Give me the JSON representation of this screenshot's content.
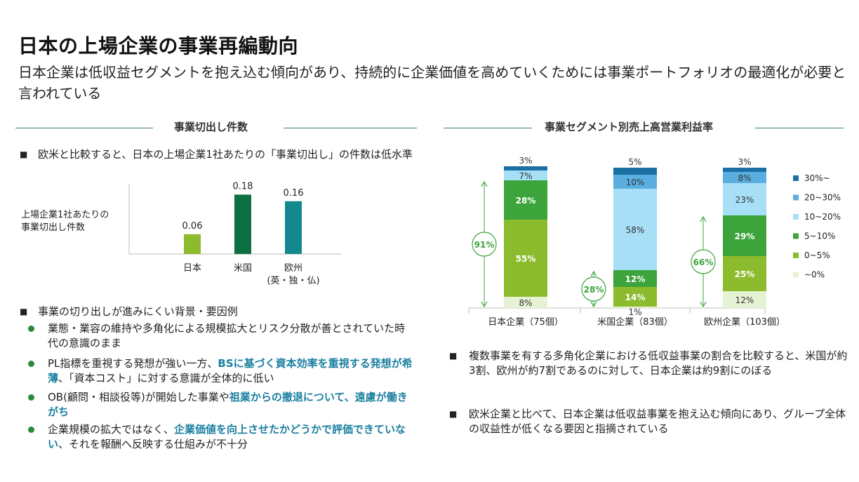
{
  "header": {
    "title": "日本の上場企業の事業再編動向",
    "subtitle": "日本企業は低収益セグメントを抱え込む傾向があり、持続的に企業価値を高めていくためには事業ポートフォリオの最適化が必要と言われている"
  },
  "left": {
    "section_title": "事業切出し件数",
    "bullet1": "欧米と比較すると、日本の上場企業1社あたりの「事業切出し」の件数は低水準",
    "bullet2": "事業の切り出しが進みにくい背景・要因例",
    "sub_items": [
      {
        "parts": [
          {
            "t": "業態・業容の維持や多角化による規模拡大とリスク分散が善とされていた時代の意識のまま",
            "h": false
          }
        ]
      },
      {
        "parts": [
          {
            "t": "PL指標を重視する発想が強い一方、",
            "h": false
          },
          {
            "t": "BSに基づく資本効率を重視する発想が希薄",
            "h": true
          },
          {
            "t": "、「資本コスト」に対する意識が全体的に低い",
            "h": false
          }
        ]
      },
      {
        "parts": [
          {
            "t": "OB(顧問・相談役等)が開始した事業や",
            "h": false
          },
          {
            "t": "祖業からの撤退について、遠慮が働きがち",
            "h": true
          }
        ]
      },
      {
        "parts": [
          {
            "t": "企業規模の拡大ではなく、",
            "h": false
          },
          {
            "t": "企業価値を向上させたかどうかで評価できていない",
            "h": true
          },
          {
            "t": "、それを報酬へ反映する仕組みが不十分",
            "h": false
          }
        ]
      }
    ]
  },
  "right": {
    "section_title": "事業セグメント別売上高営業利益率",
    "bullets": [
      "複数事業を有する多角化企業における低収益事業の割合を比較すると、米国が約3割、欧州が約7割であるのに対して、日本企業は約9割にのぼる",
      "欧米企業と比べて、日本企業は低収益事業を抱え込む傾向にあり、グループ全体の収益性が低くなる要因と指摘されている"
    ]
  },
  "chart_data": [
    {
      "type": "bar",
      "title": "",
      "ylabel": "上場企業1社あたりの事業切出し件数",
      "categories": [
        "日本",
        "米国",
        "欧州\n(英・独・仏)"
      ],
      "values": [
        0.06,
        0.18,
        0.16
      ],
      "value_labels": [
        "0.06",
        "0.18",
        "0.16"
      ],
      "colors": [
        "#8cbc2e",
        "#0d7040",
        "#13898f"
      ],
      "ylim": [
        0,
        0.2
      ],
      "grid": false
    },
    {
      "type": "bar",
      "stacked": true,
      "title": "事業セグメント別売上高営業利益率",
      "categories": [
        "日本企業（75個）",
        "米国企業（83個）",
        "欧州企業（103個）"
      ],
      "series": [
        {
          "name": "~0%",
          "values": [
            8,
            1,
            12
          ],
          "labels": [
            "8%",
            "1%",
            "12%"
          ],
          "color": "#e6f2d4",
          "text_color": "#333333",
          "bold": false
        },
        {
          "name": "0~5%",
          "values": [
            55,
            14,
            25
          ],
          "labels": [
            "55%",
            "14%",
            "25%"
          ],
          "color": "#8cbc2e",
          "text_color": "#ffffff",
          "bold": true
        },
        {
          "name": "5~10%",
          "values": [
            28,
            12,
            29
          ],
          "labels": [
            "28%",
            "12%",
            "29%"
          ],
          "color": "#3ca43a",
          "text_color": "#ffffff",
          "bold": true
        },
        {
          "name": "10~20%",
          "values": [
            7,
            58,
            23
          ],
          "labels": [
            "7%",
            "58%",
            "23%"
          ],
          "color": "#a6dff6",
          "text_color": "#333333",
          "bold": false
        },
        {
          "name": "20~30%",
          "values": [
            0,
            10,
            8
          ],
          "labels": [
            "",
            "10%",
            "8%"
          ],
          "color": "#5aaee0",
          "text_color": "#333333",
          "bold": false
        },
        {
          "name": "30%~",
          "values": [
            3,
            5,
            3
          ],
          "labels": [
            "3%",
            "5%",
            "3%"
          ],
          "color": "#1a6fa4",
          "text_color": "#333333",
          "bold": false
        }
      ],
      "legend_order": [
        "30%~",
        "20~30%",
        "10~20%",
        "5~10%",
        "0~5%",
        "~0%"
      ],
      "annotations": [
        {
          "category": 0,
          "text": "91%",
          "span_series": [
            0,
            1,
            2
          ]
        },
        {
          "category": 1,
          "text": "28%",
          "span_series": [
            0,
            1,
            2
          ]
        },
        {
          "category": 2,
          "text": "66%",
          "span_series": [
            0,
            1,
            2
          ]
        }
      ],
      "annotation_color": "#3ca43a",
      "legend_position": "right"
    }
  ]
}
